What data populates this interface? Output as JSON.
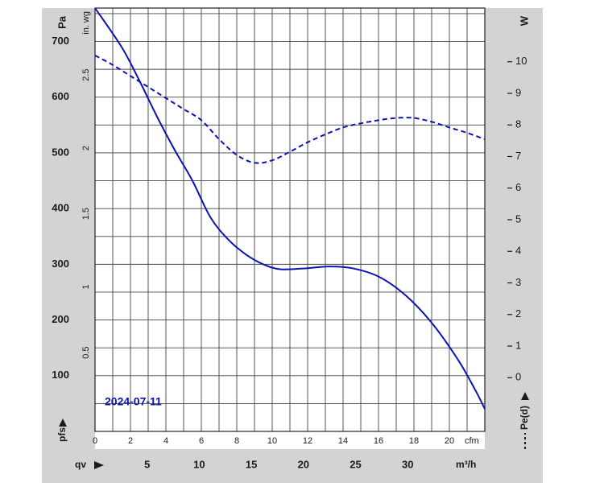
{
  "chart_data": {
    "type": "line",
    "date_label": "2024-07-11",
    "x_axis_top": {
      "label": "cfm",
      "ticks": [
        0,
        2,
        4,
        6,
        8,
        10,
        12,
        14,
        16,
        18,
        20
      ],
      "range": [
        0,
        22
      ]
    },
    "x_axis_bottom": {
      "name": "qv",
      "unit": "m³/h",
      "ticks": [
        5,
        10,
        15,
        20,
        25,
        30
      ],
      "range": [
        0,
        37.4
      ]
    },
    "y_axis_left": {
      "name": "pfs",
      "unit": "Pa",
      "ticks": [
        100,
        200,
        300,
        400,
        500,
        600,
        700
      ],
      "range": [
        0,
        760
      ]
    },
    "y_axis_inner": {
      "unit": "in. wg",
      "ticks": [
        "0.5",
        "1",
        "1.5",
        "2",
        "2.5"
      ],
      "values": [
        0.5,
        1,
        1.5,
        2,
        2.5
      ],
      "range": [
        0,
        3.05
      ]
    },
    "y_axis_right": {
      "name": "Pe(d)",
      "unit": "W",
      "ticks": [
        0,
        1,
        2,
        3,
        4,
        5,
        6,
        7,
        8,
        9,
        10
      ],
      "range": [
        -1.7,
        11.7
      ]
    },
    "grid": true,
    "series": [
      {
        "axis": "left",
        "style": "solid",
        "color": "#0a14b4",
        "points": [
          [
            0,
            760
          ],
          [
            1.5,
            690
          ],
          [
            2.5,
            630
          ],
          [
            3.5,
            565
          ],
          [
            4.5,
            505
          ],
          [
            5.5,
            450
          ],
          [
            6.5,
            385
          ],
          [
            7.5,
            345
          ],
          [
            8.5,
            318
          ],
          [
            9.5,
            300
          ],
          [
            10.5,
            291
          ],
          [
            12,
            293
          ],
          [
            13.2,
            296
          ],
          [
            14.5,
            293
          ],
          [
            16,
            278
          ],
          [
            17.5,
            245
          ],
          [
            19,
            195
          ],
          [
            20.5,
            128
          ],
          [
            21.5,
            72
          ],
          [
            22,
            40
          ]
        ]
      },
      {
        "axis": "right",
        "style": "dashed",
        "color": "#0a14b4",
        "points": [
          [
            0,
            10.2
          ],
          [
            1,
            9.9
          ],
          [
            2,
            9.55
          ],
          [
            3,
            9.2
          ],
          [
            4,
            8.85
          ],
          [
            5,
            8.5
          ],
          [
            6,
            8.15
          ],
          [
            7,
            7.55
          ],
          [
            8,
            7.05
          ],
          [
            9,
            6.8
          ],
          [
            10,
            6.88
          ],
          [
            11,
            7.15
          ],
          [
            12,
            7.45
          ],
          [
            13,
            7.7
          ],
          [
            14,
            7.92
          ],
          [
            15,
            8.05
          ],
          [
            16,
            8.15
          ],
          [
            17,
            8.22
          ],
          [
            18,
            8.22
          ],
          [
            19,
            8.1
          ],
          [
            20,
            7.92
          ],
          [
            21,
            7.75
          ],
          [
            22,
            7.55
          ]
        ]
      }
    ]
  }
}
